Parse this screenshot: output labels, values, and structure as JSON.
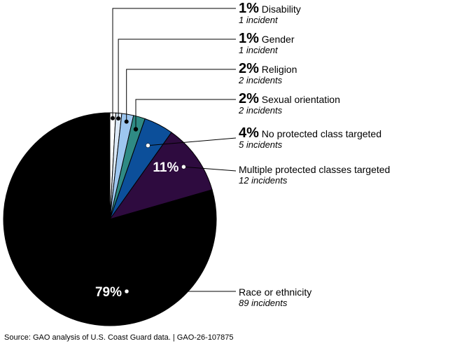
{
  "chart_data": {
    "type": "pie",
    "slices": [
      {
        "label": "Disability",
        "percent_label": "1%",
        "count_label": "1 incident",
        "value": 1,
        "color": "#ffffff"
      },
      {
        "label": "Gender",
        "percent_label": "1%",
        "count_label": "1 incident",
        "value": 1,
        "color": "#dce9f7"
      },
      {
        "label": "Religion",
        "percent_label": "2%",
        "count_label": "2 incidents",
        "value": 2,
        "color": "#9dc6ef"
      },
      {
        "label": "Sexual orientation",
        "percent_label": "2%",
        "count_label": "2 incidents",
        "value": 2,
        "color": "#2f8a84"
      },
      {
        "label": "No protected class targeted",
        "percent_label": "4%",
        "count_label": "5 incidents",
        "value": 5,
        "color": "#0c4f9a"
      },
      {
        "label": "Multiple protected classes targeted",
        "percent_label": "11%",
        "count_label": "12 incidents",
        "value": 12,
        "color": "#2e0b3f"
      },
      {
        "label": "Race or ethnicity",
        "percent_label": "79%",
        "count_label": "89 incidents",
        "value": 89,
        "color": "#000000"
      }
    ]
  },
  "source": "Source: GAO analysis of U.S. Coast Guard data.  |  GAO-26-107875"
}
